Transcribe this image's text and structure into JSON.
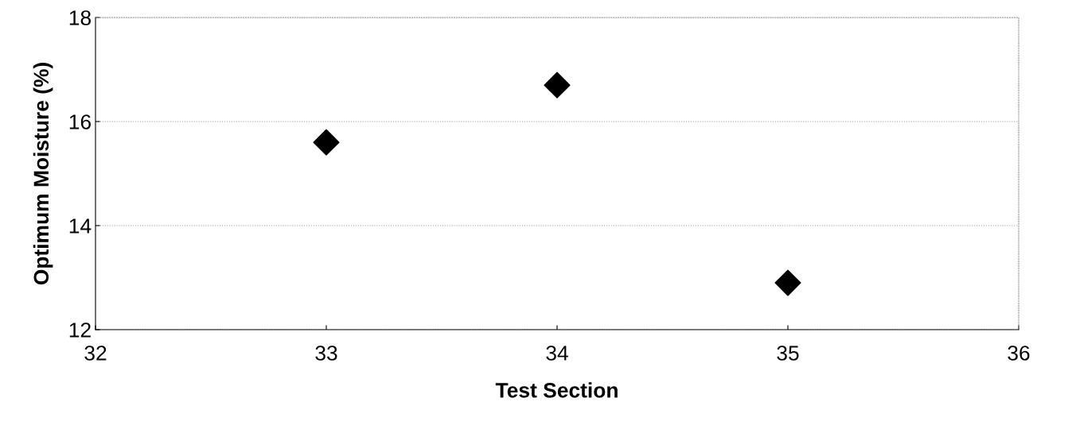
{
  "chart_data": {
    "type": "scatter",
    "xlabel": "Test Section",
    "ylabel": "Optimum Moisture (%)",
    "x": [
      33,
      34,
      35
    ],
    "series": [
      {
        "color": "#000000",
        "values": [
          15.6,
          16.7,
          12.9
        ]
      }
    ],
    "xlim": [
      32,
      36
    ],
    "xticks": [
      32,
      33,
      34,
      35,
      36
    ],
    "ylim": [
      12,
      18
    ],
    "yticks": [
      12,
      14,
      16,
      18
    ],
    "grid": "y",
    "marker": "diamond"
  }
}
